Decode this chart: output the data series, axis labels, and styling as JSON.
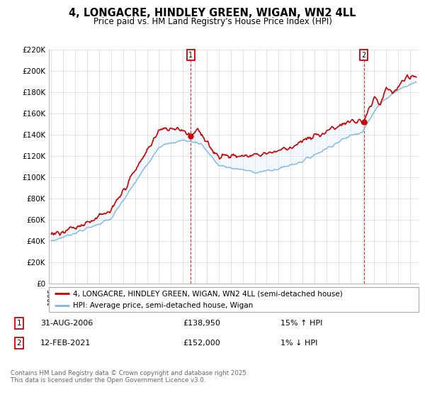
{
  "title": "4, LONGACRE, HINDLEY GREEN, WIGAN, WN2 4LL",
  "subtitle": "Price paid vs. HM Land Registry's House Price Index (HPI)",
  "ylim": [
    0,
    220000
  ],
  "yticks": [
    0,
    20000,
    40000,
    60000,
    80000,
    100000,
    120000,
    140000,
    160000,
    180000,
    200000,
    220000
  ],
  "ytick_labels": [
    "£0",
    "£20K",
    "£40K",
    "£60K",
    "£80K",
    "£100K",
    "£120K",
    "£140K",
    "£160K",
    "£180K",
    "£200K",
    "£220K"
  ],
  "hpi_color": "#7ab8e8",
  "hpi_fill_color": "#daeaf7",
  "price_color": "#cc0000",
  "sale1_year": 2006.667,
  "sale1_price": 138950,
  "sale2_year": 2021.125,
  "sale2_price": 152000,
  "legend_property": "4, LONGACRE, HINDLEY GREEN, WIGAN, WN2 4LL (semi-detached house)",
  "legend_hpi": "HPI: Average price, semi-detached house, Wigan",
  "footer": "Contains HM Land Registry data © Crown copyright and database right 2025.\nThis data is licensed under the Open Government Licence v3.0.",
  "background_color": "#ffffff",
  "grid_color": "#cccccc"
}
